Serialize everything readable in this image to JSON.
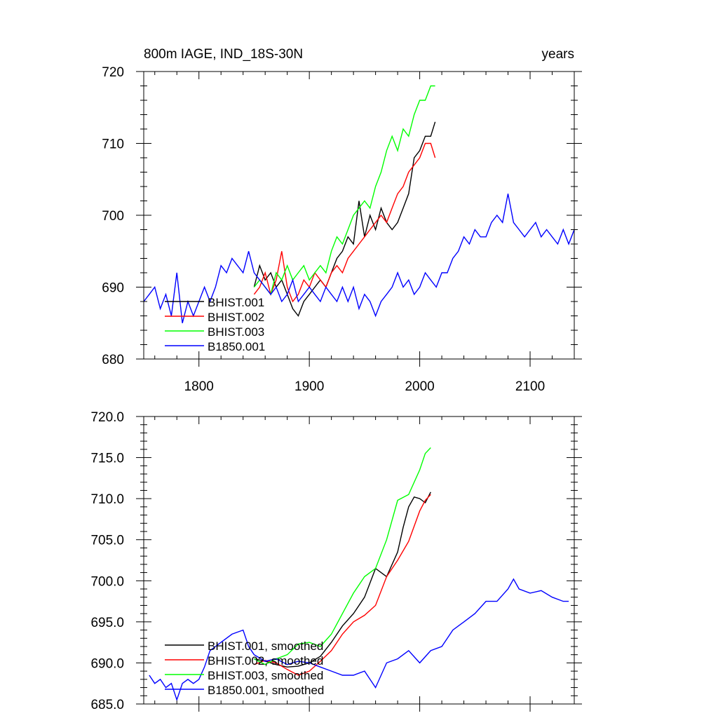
{
  "chart_data": [
    {
      "type": "line",
      "title": "800m IAGE, IND_18S-30N",
      "right_title": "years",
      "xlim": [
        1750,
        2140
      ],
      "ylim": [
        680,
        720
      ],
      "x_ticks": [
        1800,
        1900,
        2000,
        2100
      ],
      "x_tick_labels": [
        "1800",
        "1900",
        "2000",
        "2100"
      ],
      "y_ticks": [
        680,
        690,
        700,
        710,
        720
      ],
      "y_tick_labels": [
        "680",
        "690",
        "700",
        "710",
        "720"
      ],
      "legend_position": "bottom-left",
      "series": [
        {
          "name": "BHIST.001",
          "color": "#000000",
          "x": [
            1850,
            1855,
            1860,
            1865,
            1870,
            1875,
            1880,
            1885,
            1890,
            1895,
            1900,
            1905,
            1910,
            1915,
            1920,
            1925,
            1930,
            1935,
            1940,
            1945,
            1950,
            1955,
            1960,
            1965,
            1970,
            1975,
            1980,
            1985,
            1990,
            1995,
            2000,
            2005,
            2010,
            2014
          ],
          "y": [
            690,
            693,
            691,
            692,
            690,
            691,
            689,
            687,
            686,
            688,
            689,
            690,
            691,
            690,
            692,
            694,
            695,
            697,
            696,
            702,
            697,
            700,
            698,
            701,
            699,
            698,
            699,
            701,
            703,
            708,
            709,
            711,
            711,
            713
          ]
        },
        {
          "name": "BHIST.002",
          "color": "#ff0000",
          "x": [
            1850,
            1855,
            1860,
            1865,
            1870,
            1875,
            1880,
            1885,
            1890,
            1895,
            1900,
            1905,
            1910,
            1915,
            1920,
            1925,
            1930,
            1935,
            1940,
            1945,
            1950,
            1955,
            1960,
            1965,
            1970,
            1975,
            1980,
            1985,
            1990,
            1995,
            2000,
            2005,
            2010,
            2014
          ],
          "y": [
            689,
            690,
            692,
            689,
            691,
            695,
            690,
            688,
            689,
            691,
            690,
            692,
            691,
            690,
            692,
            693,
            692,
            694,
            695,
            696,
            697,
            698,
            699,
            700,
            699,
            701,
            703,
            704,
            706,
            707,
            708,
            710,
            710,
            708
          ]
        },
        {
          "name": "BHIST.003",
          "color": "#00ff00",
          "x": [
            1850,
            1855,
            1860,
            1865,
            1870,
            1875,
            1880,
            1885,
            1890,
            1895,
            1900,
            1905,
            1910,
            1915,
            1920,
            1925,
            1930,
            1935,
            1940,
            1945,
            1950,
            1955,
            1960,
            1965,
            1970,
            1975,
            1980,
            1985,
            1990,
            1995,
            2000,
            2005,
            2010,
            2014
          ],
          "y": [
            690,
            691,
            690,
            689,
            692,
            691,
            693,
            691,
            692,
            693,
            691,
            692,
            693,
            692,
            695,
            697,
            696,
            698,
            700,
            701,
            702,
            701,
            704,
            706,
            709,
            711,
            709,
            712,
            711,
            714,
            716,
            716,
            718,
            718
          ]
        },
        {
          "name": "B1850.001",
          "color": "#0000ff",
          "x": [
            1750,
            1755,
            1760,
            1765,
            1770,
            1775,
            1780,
            1785,
            1790,
            1795,
            1800,
            1805,
            1810,
            1815,
            1820,
            1825,
            1830,
            1835,
            1840,
            1845,
            1850,
            1855,
            1860,
            1865,
            1870,
            1875,
            1880,
            1885,
            1890,
            1895,
            1900,
            1905,
            1910,
            1915,
            1920,
            1925,
            1930,
            1935,
            1940,
            1945,
            1950,
            1955,
            1960,
            1965,
            1970,
            1975,
            1980,
            1985,
            1990,
            1995,
            2000,
            2005,
            2010,
            2015,
            2020,
            2025,
            2030,
            2035,
            2040,
            2045,
            2050,
            2055,
            2060,
            2065,
            2070,
            2075,
            2080,
            2085,
            2090,
            2095,
            2100,
            2105,
            2110,
            2115,
            2120,
            2125,
            2130,
            2135,
            2140
          ],
          "y": [
            688,
            689,
            690,
            687,
            689,
            686,
            692,
            685,
            688,
            686,
            688,
            690,
            688,
            690,
            693,
            692,
            694,
            693,
            692,
            695,
            692,
            691,
            690,
            689,
            690,
            688,
            689,
            691,
            688,
            689,
            690,
            689,
            688,
            690,
            689,
            688,
            690,
            688,
            690,
            687,
            689,
            688,
            686,
            688,
            689,
            690,
            692,
            690,
            691,
            689,
            690,
            692,
            691,
            690,
            692,
            692,
            694,
            695,
            697,
            696,
            698,
            697,
            697,
            699,
            700,
            699,
            703,
            699,
            698,
            697,
            698,
            699,
            697,
            698,
            697,
            696,
            698,
            696,
            698
          ]
        }
      ]
    },
    {
      "type": "line",
      "xlim": [
        1750,
        2140
      ],
      "ylim": [
        685,
        720
      ],
      "x_ticks": [
        1800,
        1900,
        2000,
        2100
      ],
      "y_ticks": [
        685,
        690,
        695,
        700,
        705,
        710,
        715,
        720
      ],
      "y_tick_labels": [
        "685.0",
        "690.0",
        "695.0",
        "700.0",
        "705.0",
        "710.0",
        "715.0",
        "720.0"
      ],
      "legend_position": "bottom-left",
      "series": [
        {
          "name": "BHIST.001, smoothed",
          "color": "#000000",
          "x": [
            1850,
            1860,
            1870,
            1880,
            1890,
            1900,
            1910,
            1920,
            1930,
            1940,
            1950,
            1960,
            1970,
            1980,
            1985,
            1990,
            1995,
            2000,
            2005,
            2010
          ],
          "y": [
            690.5,
            690.2,
            689.8,
            689.5,
            689.6,
            690.0,
            690.8,
            692.5,
            694.5,
            696.0,
            698.0,
            701.5,
            700.5,
            703.5,
            706.5,
            709.0,
            710.2,
            710.0,
            709.5,
            710.8
          ]
        },
        {
          "name": "BHIST.002, smoothed",
          "color": "#ff0000",
          "x": [
            1850,
            1860,
            1870,
            1880,
            1890,
            1900,
            1910,
            1920,
            1930,
            1940,
            1950,
            1960,
            1970,
            1980,
            1990,
            2000,
            2005,
            2010
          ],
          "y": [
            689.8,
            690.3,
            690.0,
            689.2,
            688.5,
            689.0,
            690.2,
            691.5,
            693.5,
            695.0,
            695.8,
            697.0,
            700.5,
            702.5,
            704.8,
            708.5,
            709.8,
            710.5
          ]
        },
        {
          "name": "BHIST.003, smoothed",
          "color": "#00ff00",
          "x": [
            1850,
            1860,
            1870,
            1880,
            1890,
            1900,
            1910,
            1920,
            1930,
            1940,
            1950,
            1960,
            1970,
            1980,
            1990,
            2000,
            2005,
            2010
          ],
          "y": [
            690.5,
            689.8,
            690.5,
            691.0,
            692.3,
            692.5,
            692.0,
            693.5,
            696.0,
            698.5,
            700.5,
            701.5,
            705.0,
            709.8,
            710.5,
            713.5,
            715.5,
            716.2
          ]
        },
        {
          "name": "B1850.001, smoothed",
          "color": "#0000ff",
          "x": [
            1755,
            1760,
            1765,
            1770,
            1775,
            1780,
            1785,
            1790,
            1795,
            1800,
            1805,
            1810,
            1815,
            1820,
            1830,
            1840,
            1845,
            1850,
            1860,
            1870,
            1880,
            1890,
            1900,
            1910,
            1920,
            1930,
            1940,
            1950,
            1960,
            1970,
            1980,
            1990,
            2000,
            2010,
            2020,
            2030,
            2040,
            2050,
            2060,
            2070,
            2080,
            2085,
            2090,
            2100,
            2110,
            2120,
            2130,
            2135
          ],
          "y": [
            688.5,
            687.5,
            688.0,
            687.0,
            687.5,
            685.5,
            687.5,
            688.0,
            687.5,
            688.0,
            689.5,
            691.5,
            692.0,
            692.5,
            693.5,
            694.0,
            692.0,
            691.0,
            690.2,
            690.5,
            689.8,
            690.2,
            690.0,
            689.5,
            689.0,
            688.5,
            688.5,
            689.0,
            687.0,
            690.0,
            690.5,
            691.5,
            690.0,
            691.5,
            692.0,
            694.0,
            695.0,
            696.0,
            697.5,
            697.5,
            699.0,
            700.2,
            699.0,
            698.5,
            698.8,
            698.0,
            697.5,
            697.5
          ]
        }
      ]
    }
  ]
}
